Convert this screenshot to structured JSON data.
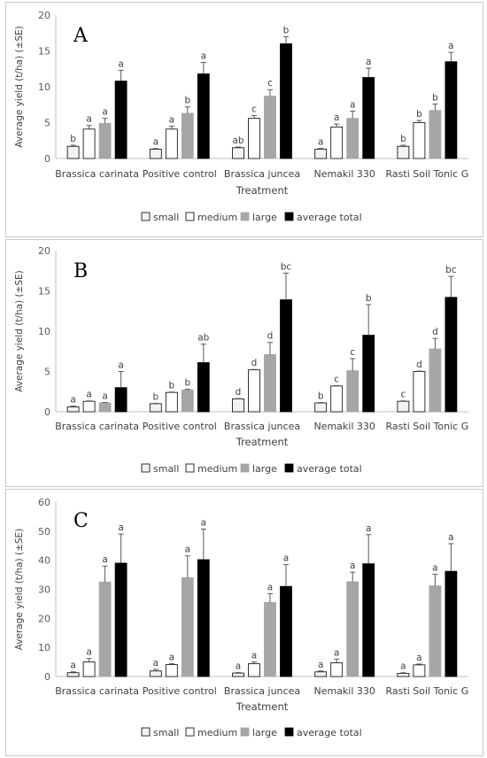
{
  "colors": {
    "small": "#f2f2f2",
    "medium": "#ffffff",
    "large": "#a6a6a6",
    "average total": "#000000",
    "axis": "#bfbfbf",
    "grid": "#d9d9d9",
    "error_bar": "#595959"
  },
  "chart_data": [
    {
      "type": "bar",
      "panel_label": "A",
      "xlabel": "Treatment",
      "ylabel": "Average yield (t/ha) (±SE)",
      "ylim": [
        0,
        20
      ],
      "yticks": [
        0,
        5,
        10,
        15,
        20
      ],
      "grid": false,
      "legend_position": "bottom",
      "categories": [
        "Brassica carinata",
        "Positive control",
        "Brassica juncea",
        "Nemakil 330",
        "Rasti Soil Tonic G"
      ],
      "series": [
        {
          "name": "small",
          "values": [
            1.7,
            1.3,
            1.5,
            1.3,
            1.7
          ],
          "errors": [
            0.15,
            0.1,
            0.1,
            0.1,
            0.15
          ],
          "letters": [
            "b",
            "a",
            "ab",
            "a",
            "b"
          ]
        },
        {
          "name": "medium",
          "values": [
            4.1,
            4.1,
            5.6,
            4.4,
            5.0
          ],
          "errors": [
            0.5,
            0.4,
            0.4,
            0.4,
            0.3
          ],
          "letters": [
            "a",
            "a",
            "c",
            "a",
            "b"
          ]
        },
        {
          "name": "large",
          "values": [
            4.9,
            6.3,
            8.7,
            5.6,
            6.7
          ],
          "errors": [
            0.7,
            0.9,
            0.9,
            1.0,
            0.9
          ],
          "letters": [
            "a",
            "b",
            "c",
            "a",
            "b"
          ]
        },
        {
          "name": "average total",
          "values": [
            10.8,
            11.8,
            16.0,
            11.3,
            13.5
          ],
          "errors": [
            1.5,
            1.6,
            1.0,
            1.3,
            1.3
          ],
          "letters": [
            "a",
            "a",
            "b",
            "a",
            "a"
          ]
        }
      ]
    },
    {
      "type": "bar",
      "panel_label": "B",
      "xlabel": "Treatment",
      "ylabel": "Average yield (t/ha) (±SE)",
      "ylim": [
        0,
        20
      ],
      "yticks": [
        0,
        5,
        10,
        15,
        20
      ],
      "grid": false,
      "legend_position": "bottom",
      "categories": [
        "Brassica carinata",
        "Positive control",
        "Brassica juncea",
        "Nemakil 330",
        "Rasti Soil Tonic G"
      ],
      "series": [
        {
          "name": "small",
          "values": [
            0.6,
            1.0,
            1.6,
            1.1,
            1.3
          ],
          "errors": [
            0.1,
            0.05,
            0.05,
            0.05,
            0.05
          ],
          "letters": [
            "a",
            "b",
            "d",
            "b",
            "c"
          ]
        },
        {
          "name": "medium",
          "values": [
            1.3,
            2.4,
            5.2,
            3.2,
            5.0
          ],
          "errors": [
            0.05,
            0.05,
            0.05,
            0.05,
            0.05
          ],
          "letters": [
            "a",
            "b",
            "d",
            "c",
            "d"
          ]
        },
        {
          "name": "large",
          "values": [
            1.1,
            2.7,
            7.1,
            5.1,
            7.8
          ],
          "errors": [
            0.05,
            0.1,
            1.5,
            1.5,
            1.3
          ],
          "letters": [
            "a",
            "b",
            "d",
            "c",
            "d"
          ]
        },
        {
          "name": "average total",
          "values": [
            3.0,
            6.1,
            13.9,
            9.5,
            14.2
          ],
          "errors": [
            2.0,
            2.3,
            3.3,
            3.8,
            2.6
          ],
          "letters": [
            "a",
            "ab",
            "bc",
            "b",
            "bc"
          ]
        }
      ]
    },
    {
      "type": "bar",
      "panel_label": "C",
      "xlabel": "Treatment",
      "ylabel": "Average yield (t/ha) (±SE)",
      "ylim": [
        0,
        60
      ],
      "yticks": [
        0,
        10,
        20,
        30,
        40,
        50,
        60
      ],
      "grid": false,
      "legend_position": "bottom",
      "categories": [
        "Brassica carinata",
        "Positive control",
        "Brassica juncea",
        "Nemakil 330",
        "Rasti Soil Tonic G"
      ],
      "series": [
        {
          "name": "small",
          "values": [
            1.3,
            1.9,
            1.2,
            1.6,
            1.1
          ],
          "errors": [
            0.3,
            0.6,
            0.2,
            0.3,
            0.2
          ],
          "letters": [
            "a",
            "a",
            "a",
            "a",
            "a"
          ]
        },
        {
          "name": "medium",
          "values": [
            5.0,
            4.1,
            4.4,
            4.7,
            4.0
          ],
          "errors": [
            1.2,
            0.3,
            0.6,
            1.3,
            0.3
          ],
          "letters": [
            "a",
            "a",
            "a",
            "a",
            "a"
          ]
        },
        {
          "name": "large",
          "values": [
            32.5,
            34.0,
            25.5,
            32.6,
            31.2
          ],
          "errors": [
            5.5,
            7.5,
            3.0,
            3.3,
            4.0
          ],
          "letters": [
            "a",
            "a",
            "a",
            "a",
            "a"
          ]
        },
        {
          "name": "average total",
          "values": [
            39.0,
            40.2,
            31.0,
            38.8,
            36.2
          ],
          "errors": [
            10.0,
            10.5,
            7.5,
            10.0,
            9.5
          ],
          "letters": [
            "a",
            "a",
            "a",
            "a",
            "a"
          ]
        }
      ]
    }
  ]
}
